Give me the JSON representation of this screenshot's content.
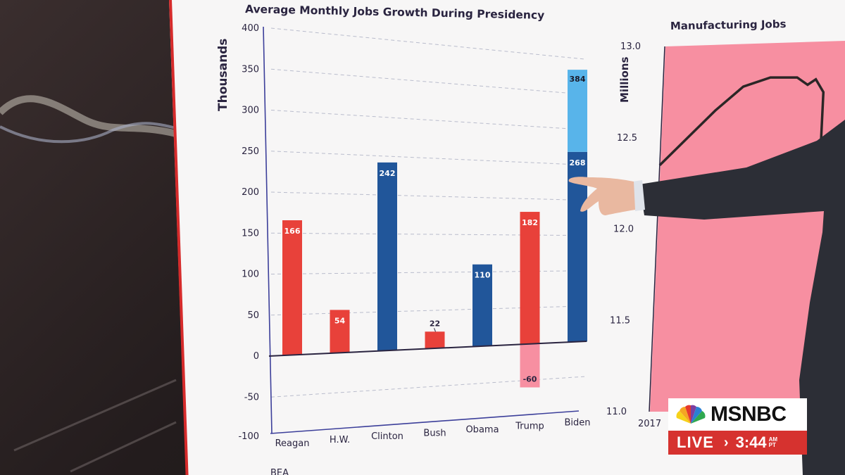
{
  "broadcast": {
    "network": "MSNBC",
    "live_label": "LIVE",
    "time": "3:44",
    "meridiem": "AM",
    "timezone": "PT",
    "colors": {
      "live_red": "#d6322f",
      "bar_red": "#e8413a",
      "bar_blue": "#21569a",
      "bar_light_blue": "#58b4ea",
      "manufacturing_fill": "#f78fa1"
    }
  },
  "chart_data": [
    {
      "type": "bar",
      "title": "Average Monthly Jobs Growth During Presidency",
      "ylabel": "Thousands",
      "xlabel": "",
      "ylim": [
        -100,
        400
      ],
      "yticks": [
        400,
        350,
        300,
        250,
        200,
        150,
        100,
        50,
        0,
        -50,
        -100
      ],
      "grid": true,
      "categories": [
        "Reagan",
        "H.W.",
        "Clinton",
        "Bush",
        "Obama",
        "Trump",
        "Biden"
      ],
      "values": [
        166,
        54,
        242,
        22,
        110,
        182,
        268
      ],
      "party_colors": [
        "red",
        "red",
        "blue",
        "red",
        "blue",
        "red",
        "blue"
      ],
      "extra_segments": [
        {
          "category": "Trump",
          "value": -60,
          "color": "pink"
        },
        {
          "category": "Biden",
          "value": 384,
          "color": "light-blue"
        }
      ],
      "data_labels": [
        "166",
        "54",
        "242",
        "22",
        "110",
        "182",
        "268"
      ],
      "extra_labels": [
        "-60",
        "384"
      ]
    },
    {
      "type": "area",
      "title": "Manufacturing Jobs",
      "ylabel": "Millions",
      "ylim": [
        11.0,
        13.0
      ],
      "yticks": [
        "13.0",
        "12.5",
        "12.0",
        "11.5",
        "11.0"
      ],
      "x_start_label": "2017",
      "x": [
        2017.0,
        2017.5,
        2018.0,
        2018.5,
        2019.0,
        2019.5,
        2019.7,
        2019.85,
        2020.0
      ],
      "values": [
        12.35,
        12.5,
        12.65,
        12.78,
        12.83,
        12.83,
        12.79,
        12.82,
        12.75
      ]
    }
  ],
  "footer_fragment": "BEA"
}
